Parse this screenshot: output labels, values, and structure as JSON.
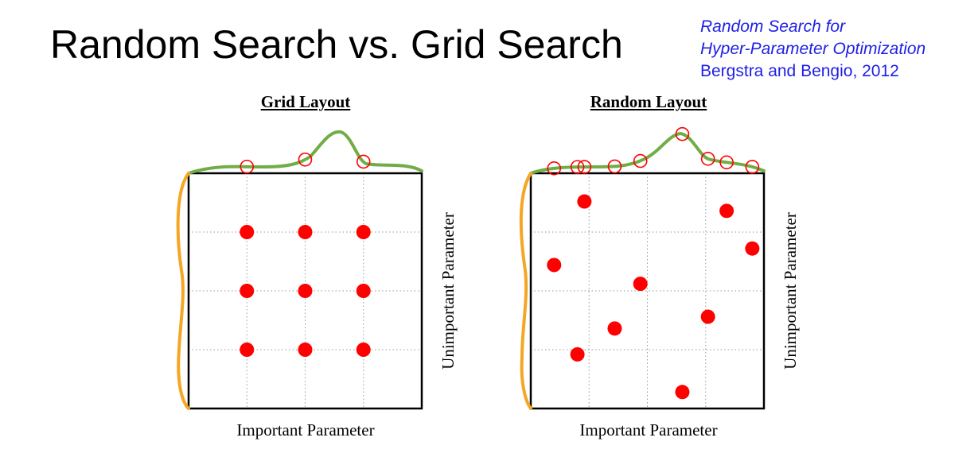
{
  "title": "Random Search vs. Grid Search",
  "reference": {
    "line1": "Random Search for",
    "line2": "Hyper-Parameter Optimization",
    "line3": "Bergstra and Bengio, 2012"
  },
  "colors": {
    "text": "#000000",
    "reference": "#1f1fe6",
    "points": "#ff0000",
    "important_curve": "#70ad47",
    "unimportant_curve": "#f5a623",
    "gridlines": "#9a9a9a"
  },
  "panels": [
    {
      "title": "Grid Layout",
      "xlabel": "Important Parameter",
      "ylabel": "Unimportant Parameter",
      "points": [
        {
          "x": 0.25,
          "y": 0.75
        },
        {
          "x": 0.5,
          "y": 0.75
        },
        {
          "x": 0.75,
          "y": 0.75
        },
        {
          "x": 0.25,
          "y": 0.5
        },
        {
          "x": 0.5,
          "y": 0.5
        },
        {
          "x": 0.75,
          "y": 0.5
        },
        {
          "x": 0.25,
          "y": 0.25
        },
        {
          "x": 0.5,
          "y": 0.25
        },
        {
          "x": 0.75,
          "y": 0.25
        }
      ]
    },
    {
      "title": "Random Layout",
      "xlabel": "Important Parameter",
      "ylabel": "Unimportant Parameter",
      "points": [
        {
          "x": 0.23,
          "y": 0.88
        },
        {
          "x": 0.84,
          "y": 0.84
        },
        {
          "x": 0.95,
          "y": 0.68
        },
        {
          "x": 0.1,
          "y": 0.61
        },
        {
          "x": 0.47,
          "y": 0.53
        },
        {
          "x": 0.76,
          "y": 0.39
        },
        {
          "x": 0.36,
          "y": 0.34
        },
        {
          "x": 0.2,
          "y": 0.23
        },
        {
          "x": 0.65,
          "y": 0.07
        }
      ]
    }
  ]
}
